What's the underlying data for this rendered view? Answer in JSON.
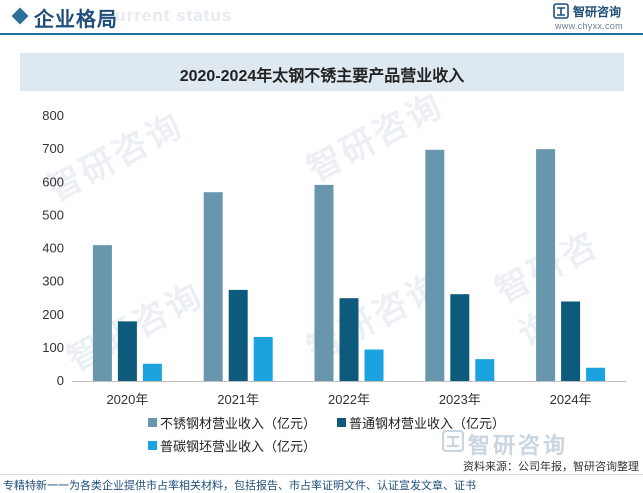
{
  "header": {
    "title": "企业格局",
    "ghost_text": "Current status",
    "brand_name": "智研咨询",
    "brand_url": "www.chyxx.com"
  },
  "watermark": {
    "text": "智研咨询"
  },
  "legend": [
    {
      "label": "不锈钢材营业收入（亿元）",
      "color": "#6897ad"
    },
    {
      "label": "普通钢材营业收入（亿元）",
      "color": "#0d5a7d"
    },
    {
      "label": "普碳钢坯营业收入（亿元）",
      "color": "#1aa3de"
    }
  ],
  "footer": {
    "source": "资料来源：公司年报，智研咨询整理",
    "service": "专精特新一一为各类企业提供市占率相关材料，包括报告、市占率证明文件、认证宣发文章、证书"
  },
  "chart_data": {
    "type": "bar",
    "title": "2020-2024年太钢不锈主要产品营业收入",
    "categories": [
      "2020年",
      "2021年",
      "2022年",
      "2023年",
      "2024年"
    ],
    "series": [
      {
        "name": "不锈钢材营业收入（亿元）",
        "color": "#6897ad",
        "values": [
          410,
          570,
          592,
          698,
          700
        ]
      },
      {
        "name": "普通钢材营业收入（亿元）",
        "color": "#0d5a7d",
        "values": [
          180,
          275,
          250,
          262,
          240
        ]
      },
      {
        "name": "普碳钢坯营业收入（亿元）",
        "color": "#1aa3de",
        "values": [
          52,
          133,
          95,
          66,
          40
        ]
      }
    ],
    "ylim": [
      0,
      800
    ],
    "yticks": [
      0,
      100,
      200,
      300,
      400,
      500,
      600,
      700,
      800
    ],
    "xlabel": "",
    "ylabel": "",
    "grid": false,
    "legend_position": "bottom-left"
  }
}
